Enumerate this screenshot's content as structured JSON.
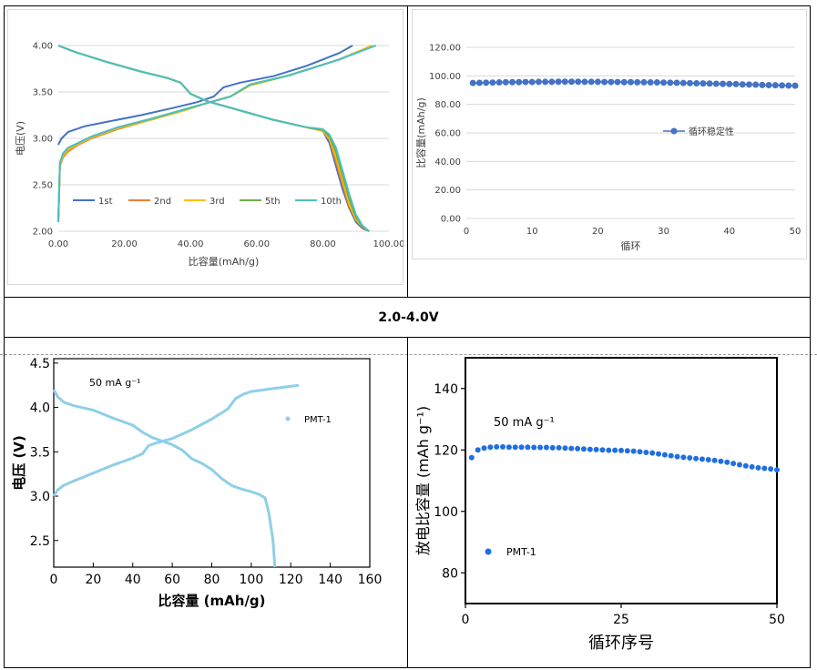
{
  "section_label": "2.0-4.0V",
  "chart_data": [
    {
      "type": "line",
      "xlabel": "比容量(mAh/g)",
      "ylabel": "电压(V)",
      "xlim": [
        0,
        100
      ],
      "ylim": [
        2.0,
        4.0
      ],
      "xticks": [
        "0.00",
        "20.00",
        "40.00",
        "60.00",
        "80.00",
        "100.00"
      ],
      "yticks": [
        "2.00",
        "2.50",
        "3.00",
        "3.50",
        "4.00"
      ],
      "grid": "horizontal",
      "legend_position": "lower-left",
      "series": [
        {
          "name": "1st",
          "color": "#4472c4",
          "charge_x": [
            0,
            1,
            3,
            8,
            15,
            25,
            35,
            42,
            47,
            50,
            55,
            65,
            75,
            85,
            89
          ],
          "charge_y": [
            2.93,
            3.0,
            3.07,
            3.13,
            3.18,
            3.25,
            3.33,
            3.39,
            3.45,
            3.55,
            3.6,
            3.67,
            3.78,
            3.92,
            4.0
          ],
          "discharge_x": [
            0,
            5,
            15,
            25,
            33,
            37,
            40,
            45,
            55,
            65,
            75,
            80,
            82,
            84,
            86,
            88,
            90,
            92,
            94
          ],
          "discharge_y": [
            4.0,
            3.93,
            3.82,
            3.72,
            3.65,
            3.6,
            3.48,
            3.4,
            3.3,
            3.2,
            3.12,
            3.08,
            2.95,
            2.7,
            2.45,
            2.25,
            2.1,
            2.03,
            2.0
          ]
        },
        {
          "name": "2nd",
          "color": "#ed7d31",
          "charge_x": [
            0,
            0.5,
            1.5,
            3,
            6,
            10,
            18,
            28,
            38,
            45,
            52,
            58,
            70,
            85,
            95
          ],
          "charge_y": [
            2.1,
            2.7,
            2.8,
            2.86,
            2.93,
            3.0,
            3.1,
            3.2,
            3.3,
            3.38,
            3.45,
            3.57,
            3.68,
            3.85,
            4.0
          ],
          "discharge_x": [
            0,
            5,
            15,
            25,
            33,
            37,
            40,
            45,
            55,
            65,
            75,
            80,
            82,
            84,
            86,
            88,
            90,
            92,
            94
          ],
          "discharge_y": [
            4.0,
            3.93,
            3.82,
            3.72,
            3.65,
            3.6,
            3.48,
            3.4,
            3.3,
            3.2,
            3.12,
            3.08,
            2.98,
            2.75,
            2.5,
            2.27,
            2.12,
            2.04,
            2.0
          ]
        },
        {
          "name": "3rd",
          "color": "#ffc000",
          "charge_x": [
            0,
            0.5,
            1.5,
            3,
            6,
            10,
            18,
            28,
            38,
            45,
            52,
            58,
            70,
            85,
            95
          ],
          "charge_y": [
            2.1,
            2.72,
            2.82,
            2.88,
            2.94,
            3.01,
            3.11,
            3.2,
            3.3,
            3.38,
            3.45,
            3.57,
            3.68,
            3.85,
            4.0
          ],
          "discharge_x": [
            0,
            5,
            15,
            25,
            33,
            37,
            40,
            45,
            55,
            65,
            75,
            80,
            82,
            84,
            86,
            88,
            90,
            92,
            94
          ],
          "discharge_y": [
            4.0,
            3.93,
            3.82,
            3.72,
            3.65,
            3.6,
            3.48,
            3.4,
            3.3,
            3.2,
            3.12,
            3.08,
            3.0,
            2.8,
            2.55,
            2.3,
            2.13,
            2.05,
            2.0
          ]
        },
        {
          "name": "5th",
          "color": "#70ad47",
          "charge_x": [
            0,
            0.5,
            1.5,
            3,
            6,
            10,
            18,
            28,
            38,
            45,
            52,
            58,
            70,
            85,
            96
          ],
          "charge_y": [
            2.1,
            2.74,
            2.84,
            2.9,
            2.95,
            3.02,
            3.12,
            3.21,
            3.31,
            3.38,
            3.45,
            3.58,
            3.68,
            3.85,
            4.0
          ],
          "discharge_x": [
            0,
            5,
            15,
            25,
            33,
            37,
            40,
            45,
            55,
            65,
            75,
            80,
            82,
            84,
            86,
            88,
            90,
            92,
            94
          ],
          "discharge_y": [
            4.0,
            3.93,
            3.82,
            3.72,
            3.65,
            3.6,
            3.48,
            3.4,
            3.3,
            3.2,
            3.12,
            3.09,
            3.02,
            2.85,
            2.6,
            2.35,
            2.15,
            2.05,
            2.0
          ]
        },
        {
          "name": "10th",
          "color": "#4bc0c0",
          "charge_x": [
            0,
            0.5,
            1.5,
            3,
            6,
            10,
            18,
            28,
            38,
            45,
            52,
            58,
            70,
            85,
            96
          ],
          "charge_y": [
            2.1,
            2.74,
            2.84,
            2.9,
            2.95,
            3.02,
            3.12,
            3.21,
            3.31,
            3.38,
            3.45,
            3.58,
            3.68,
            3.85,
            4.0
          ],
          "discharge_x": [
            0,
            5,
            15,
            25,
            33,
            37,
            40,
            45,
            55,
            65,
            75,
            80,
            82,
            84,
            86,
            88,
            90,
            92,
            94
          ],
          "discharge_y": [
            4.0,
            3.93,
            3.82,
            3.72,
            3.65,
            3.6,
            3.48,
            3.4,
            3.3,
            3.2,
            3.12,
            3.1,
            3.04,
            2.9,
            2.65,
            2.4,
            2.18,
            2.06,
            2.0
          ]
        }
      ]
    },
    {
      "type": "scatter",
      "xlabel": "循环",
      "ylabel": "比容量(mAh/g)",
      "xlim": [
        0,
        50
      ],
      "ylim": [
        0,
        120
      ],
      "xticks": [
        "0",
        "10",
        "20",
        "30",
        "40",
        "50"
      ],
      "yticks": [
        "0.00",
        "20.00",
        "40.00",
        "60.00",
        "80.00",
        "100.00",
        "120.00"
      ],
      "grid": "horizontal",
      "legend_position": "center-right",
      "series": [
        {
          "name": "循环稳定性",
          "color": "#4472c4",
          "x": [
            1,
            2,
            3,
            4,
            5,
            6,
            7,
            8,
            9,
            10,
            11,
            12,
            13,
            14,
            15,
            16,
            17,
            18,
            19,
            20,
            21,
            22,
            23,
            24,
            25,
            26,
            27,
            28,
            29,
            30,
            31,
            32,
            33,
            34,
            35,
            36,
            37,
            38,
            39,
            40,
            41,
            42,
            43,
            44,
            45,
            46,
            47,
            48,
            49,
            50
          ],
          "y": [
            95.0,
            95.1,
            95.2,
            95.3,
            95.4,
            95.5,
            95.6,
            95.6,
            95.7,
            95.7,
            95.8,
            95.8,
            95.8,
            95.9,
            95.9,
            95.9,
            95.9,
            95.8,
            95.8,
            95.8,
            95.7,
            95.7,
            95.7,
            95.6,
            95.6,
            95.5,
            95.5,
            95.4,
            95.4,
            95.3,
            95.2,
            95.1,
            95.0,
            94.9,
            94.8,
            94.7,
            94.6,
            94.5,
            94.4,
            94.3,
            94.2,
            94.0,
            93.9,
            93.8,
            93.6,
            93.5,
            93.4,
            93.3,
            93.2,
            93.1
          ]
        }
      ]
    },
    {
      "type": "line",
      "xlabel": "比容量 (mAh/g)",
      "ylabel": "电压 (V)",
      "annotation": "50 mA g⁻¹",
      "xlim": [
        0,
        160
      ],
      "ylim": [
        2.2,
        4.55
      ],
      "xticks": [
        "0",
        "20",
        "40",
        "60",
        "80",
        "100",
        "120",
        "140",
        "160"
      ],
      "yticks": [
        "2.5",
        "3.0",
        "3.5",
        "4.0",
        "4.5"
      ],
      "grid": "none",
      "legend_position": "top-right",
      "series": [
        {
          "name": "PMT-1",
          "color": "#8fcfe8",
          "charge_x": [
            0,
            2,
            5,
            10,
            20,
            30,
            40,
            45,
            48,
            52,
            60,
            70,
            80,
            88,
            92,
            96,
            100,
            110,
            124
          ],
          "charge_y": [
            3.0,
            3.07,
            3.12,
            3.17,
            3.26,
            3.35,
            3.43,
            3.48,
            3.57,
            3.6,
            3.65,
            3.75,
            3.87,
            3.98,
            4.1,
            4.15,
            4.18,
            4.21,
            4.25
          ],
          "discharge_x": [
            0,
            2,
            5,
            10,
            20,
            30,
            40,
            45,
            50,
            55,
            60,
            65,
            70,
            75,
            80,
            85,
            90,
            95,
            100,
            104,
            107,
            109,
            111,
            112
          ],
          "discharge_y": [
            4.2,
            4.12,
            4.06,
            4.02,
            3.97,
            3.88,
            3.8,
            3.72,
            3.66,
            3.62,
            3.58,
            3.52,
            3.42,
            3.37,
            3.3,
            3.2,
            3.12,
            3.08,
            3.05,
            3.02,
            2.98,
            2.8,
            2.5,
            2.2
          ]
        }
      ]
    },
    {
      "type": "scatter",
      "xlabel": "循环序号",
      "ylabel": "放电比容量 (mAh g⁻¹)",
      "annotation": "50 mA g⁻¹",
      "xlim": [
        0,
        50
      ],
      "ylim": [
        70,
        150
      ],
      "xticks": [
        "0",
        "25",
        "50"
      ],
      "yticks": [
        "80",
        "100",
        "120",
        "140"
      ],
      "grid": "none",
      "legend_position": "lower-left",
      "series": [
        {
          "name": "PMT-1",
          "color": "#1f6fe0",
          "x": [
            1,
            2,
            3,
            4,
            5,
            6,
            7,
            8,
            9,
            10,
            11,
            12,
            13,
            14,
            15,
            16,
            17,
            18,
            19,
            20,
            21,
            22,
            23,
            24,
            25,
            26,
            27,
            28,
            29,
            30,
            31,
            32,
            33,
            34,
            35,
            36,
            37,
            38,
            39,
            40,
            41,
            42,
            43,
            44,
            45,
            46,
            47,
            48,
            49,
            50
          ],
          "y": [
            117.5,
            120.0,
            120.6,
            120.9,
            121.0,
            121.0,
            120.9,
            120.9,
            120.9,
            120.9,
            120.8,
            120.8,
            120.8,
            120.7,
            120.7,
            120.6,
            120.5,
            120.4,
            120.3,
            120.2,
            120.1,
            120.0,
            119.9,
            119.9,
            119.8,
            119.7,
            119.6,
            119.4,
            119.2,
            119.0,
            118.7,
            118.4,
            118.1,
            117.8,
            117.6,
            117.4,
            117.2,
            117.0,
            116.8,
            116.6,
            116.3,
            116.0,
            115.6,
            115.2,
            114.8,
            114.5,
            114.2,
            114.0,
            113.8,
            113.5
          ]
        }
      ]
    }
  ]
}
